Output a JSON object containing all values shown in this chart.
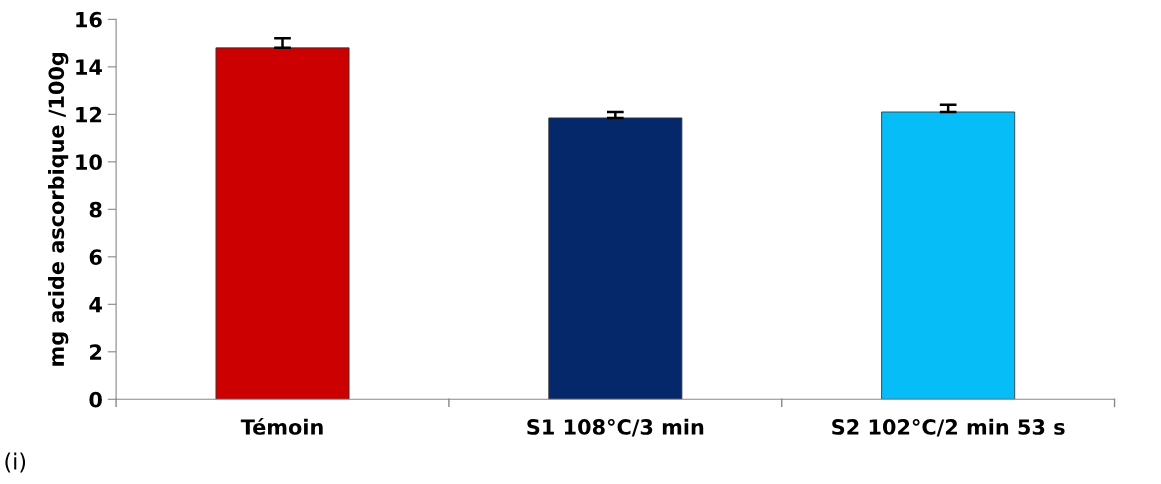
{
  "chart_data": {
    "type": "bar",
    "ylabel": "mg acide ascorbique /100g",
    "categories": [
      "Témoin",
      "S1 108°C/3 min",
      "S2 102°C/2 min 53 s"
    ],
    "values": [
      14.8,
      11.85,
      12.1
    ],
    "colors": [
      "#cc0000",
      "#05286a",
      "#06bdf7"
    ],
    "errors": [
      [
        14.8,
        15.2
      ],
      [
        11.85,
        12.1
      ],
      [
        12.1,
        12.4
      ]
    ],
    "ylim": [
      0,
      16
    ],
    "yticks": [
      0,
      2,
      4,
      6,
      8,
      10,
      12,
      14,
      16
    ],
    "grid": false,
    "legend": false,
    "annotations": [
      "(i)"
    ]
  }
}
